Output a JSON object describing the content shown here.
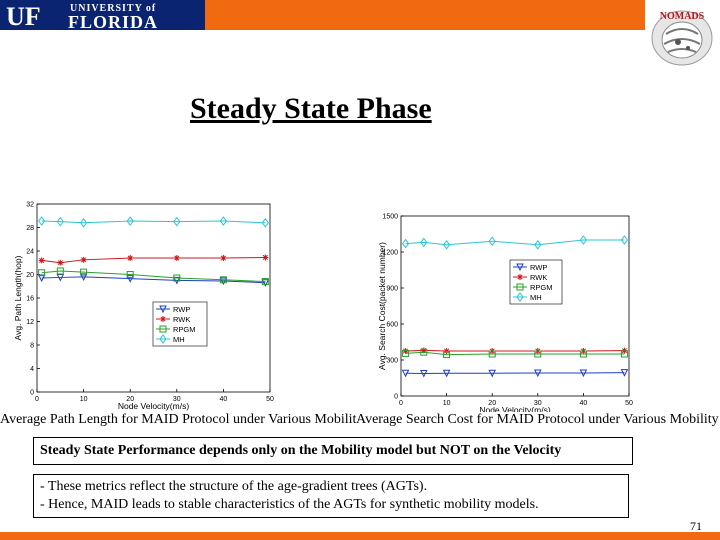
{
  "header": {
    "logo_text_1": "UF",
    "logo_text_2": "UNIVERSITY of",
    "logo_text_3": "FLORIDA",
    "badge_text": "NOMADS",
    "colors": {
      "uf_blue": "#0a2472",
      "uf_orange": "#f26a10"
    }
  },
  "slide": {
    "title": "Steady State Phase",
    "caption_left": "Average Path Length for MAID Protocol under Various Mobility",
    "caption_right": "Average Search Cost for MAID Protocol under Various Mobility",
    "box1_text": "Steady State Performance depends only on the Mobility model but NOT on the Velocity",
    "box2_line1": "- These metrics reflect the structure of the age-gradient trees (AGTs).",
    "box2_line2": "- Hence, MAID leads to stable characteristics of the AGTs for synthetic mobility models.",
    "page_number": "71"
  },
  "chart_data": [
    {
      "type": "line",
      "xlabel": "Node Velocity(m/s)",
      "ylabel": "Avg. Path Length(hop)",
      "xlim": [
        0,
        50
      ],
      "ylim": [
        0,
        32
      ],
      "xticks": [
        "0",
        "10",
        "20",
        "30",
        "40",
        "50"
      ],
      "yticks": [
        "0",
        "4",
        "8",
        "12",
        "16",
        "20",
        "24",
        "28",
        "32"
      ],
      "legend_position": "bottom-center",
      "x": [
        1,
        5,
        10,
        20,
        30,
        40,
        49
      ],
      "series": [
        {
          "name": "RWP",
          "color": "#1f3fbf",
          "marker": "triangle-down",
          "values": [
            19.4,
            19.5,
            19.6,
            19.3,
            19.0,
            18.9,
            18.6
          ]
        },
        {
          "name": "RWK",
          "color": "#d0141c",
          "marker": "star",
          "values": [
            22.4,
            22.0,
            22.5,
            22.8,
            22.8,
            22.8,
            22.9
          ]
        },
        {
          "name": "RPGM",
          "color": "#2aa02a",
          "marker": "square",
          "values": [
            20.3,
            20.6,
            20.4,
            20.0,
            19.4,
            19.1,
            18.8
          ]
        },
        {
          "name": "MH",
          "color": "#2bc6d6",
          "marker": "diamond",
          "values": [
            29.1,
            29.0,
            28.8,
            29.1,
            29.0,
            29.1,
            28.8
          ]
        }
      ]
    },
    {
      "type": "line",
      "xlabel": "Node Velocity(m/s)",
      "ylabel": "Avg. Search Cost(packet number)",
      "xlim": [
        0,
        50
      ],
      "ylim": [
        0,
        1500
      ],
      "xticks": [
        "0",
        "10",
        "20",
        "30",
        "40",
        "50"
      ],
      "yticks": [
        "0",
        "300",
        "600",
        "900",
        "1200",
        "1500"
      ],
      "legend_position": "center-right",
      "x": [
        1,
        5,
        10,
        20,
        30,
        40,
        49
      ],
      "series": [
        {
          "name": "RWP",
          "color": "#1f3fbf",
          "marker": "triangle-down",
          "values": [
            190,
            188,
            190,
            190,
            192,
            192,
            195
          ]
        },
        {
          "name": "RWK",
          "color": "#d0141c",
          "marker": "star",
          "values": [
            375,
            380,
            375,
            375,
            375,
            375,
            378
          ]
        },
        {
          "name": "RPGM",
          "color": "#2aa02a",
          "marker": "square",
          "values": [
            355,
            365,
            345,
            350,
            350,
            350,
            350
          ]
        },
        {
          "name": "MH",
          "color": "#2bc6d6",
          "marker": "diamond",
          "values": [
            1270,
            1280,
            1260,
            1290,
            1260,
            1300,
            1300
          ]
        }
      ]
    }
  ]
}
